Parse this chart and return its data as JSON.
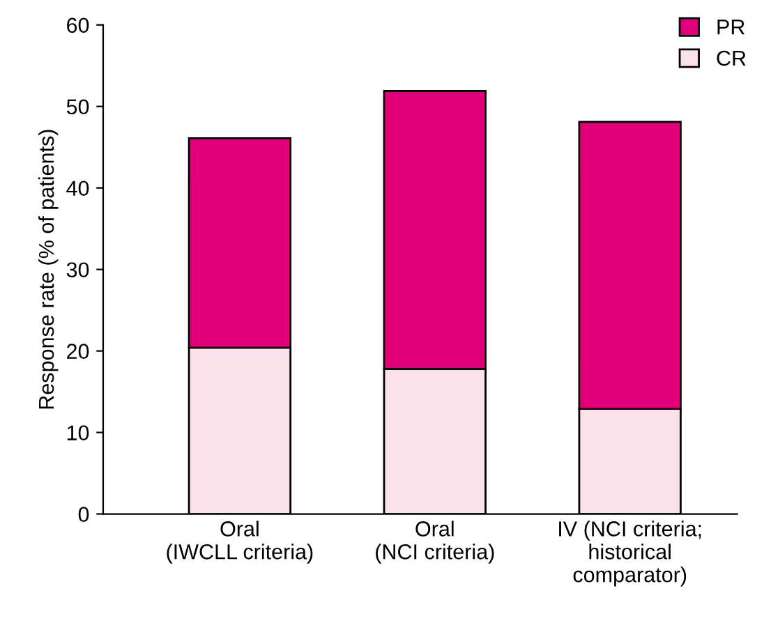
{
  "chart_data": {
    "type": "bar",
    "stacked": true,
    "ylabel": "Response rate (% of patients)",
    "categories": [
      "Oral\n(IWCLL criteria)",
      "Oral\n(NCI criteria)",
      "IV (NCI criteria;\nhistorical\ncomparator)"
    ],
    "series": [
      {
        "name": "CR",
        "color": "#fae1ea",
        "values": [
          20.4,
          17.8,
          12.9
        ]
      },
      {
        "name": "PR",
        "color": "#e2007a",
        "values": [
          25.7,
          34.1,
          35.2
        ]
      }
    ],
    "ylim": [
      0,
      60
    ],
    "yticks": [
      0,
      10,
      20,
      30,
      40,
      50,
      60
    ],
    "grid": false,
    "legend": "top right"
  }
}
